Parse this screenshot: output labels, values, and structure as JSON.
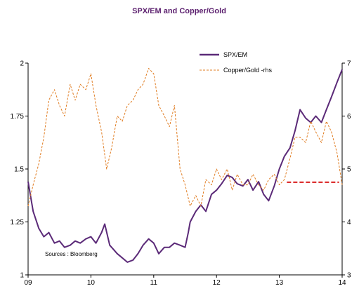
{
  "chart_data": {
    "type": "line",
    "title": "SPX/EM and Copper/Gold",
    "source_note": "Sources : Bloomberg",
    "x_axis": {
      "min": 2009.0,
      "max": 2014.0,
      "tick_values": [
        2009,
        2010,
        2011,
        2012,
        2013,
        2014
      ],
      "tick_labels": [
        "09",
        "10",
        "11",
        "12",
        "13",
        "14"
      ]
    },
    "y_left": {
      "min": 1.0,
      "max": 2.0,
      "tick_values": [
        1,
        1.25,
        1.5,
        1.75,
        2
      ],
      "tick_labels": [
        "1",
        "1.25",
        "1.5",
        "1.75",
        "2"
      ]
    },
    "y_right": {
      "min": 3.0,
      "max": 7.0,
      "tick_values": [
        3,
        4,
        5,
        6,
        7
      ],
      "tick_labels": [
        "3",
        "4",
        "5",
        "6",
        "7"
      ]
    },
    "legend_position": "top-right",
    "colors": {
      "title": "#5b1f6e",
      "spx_em": "#5b2a78",
      "copper_gold": "#e07b1f",
      "threshold": "#d91c1c"
    },
    "series": [
      {
        "name": "SPX/EM",
        "axis": "left",
        "style": "solid",
        "x": [
          2009.0,
          2009.08,
          2009.17,
          2009.25,
          2009.33,
          2009.42,
          2009.5,
          2009.58,
          2009.67,
          2009.75,
          2009.83,
          2009.92,
          2010.0,
          2010.08,
          2010.17,
          2010.22,
          2010.3,
          2010.42,
          2010.5,
          2010.58,
          2010.67,
          2010.75,
          2010.83,
          2010.92,
          2011.0,
          2011.08,
          2011.17,
          2011.25,
          2011.33,
          2011.42,
          2011.5,
          2011.55,
          2011.58,
          2011.67,
          2011.75,
          2011.83,
          2011.92,
          2012.0,
          2012.08,
          2012.17,
          2012.25,
          2012.33,
          2012.42,
          2012.5,
          2012.58,
          2012.67,
          2012.75,
          2012.83,
          2012.92,
          2013.0,
          2013.08,
          2013.17,
          2013.25,
          2013.33,
          2013.42,
          2013.5,
          2013.58,
          2013.67,
          2013.75,
          2013.83,
          2013.92,
          2014.0
        ],
        "values": [
          1.44,
          1.3,
          1.22,
          1.18,
          1.2,
          1.15,
          1.16,
          1.13,
          1.14,
          1.16,
          1.15,
          1.17,
          1.18,
          1.15,
          1.2,
          1.24,
          1.14,
          1.1,
          1.08,
          1.06,
          1.07,
          1.1,
          1.14,
          1.17,
          1.15,
          1.1,
          1.13,
          1.13,
          1.15,
          1.14,
          1.13,
          1.2,
          1.25,
          1.3,
          1.33,
          1.3,
          1.38,
          1.4,
          1.43,
          1.47,
          1.46,
          1.43,
          1.42,
          1.45,
          1.4,
          1.44,
          1.38,
          1.35,
          1.42,
          1.5,
          1.56,
          1.6,
          1.68,
          1.78,
          1.74,
          1.72,
          1.75,
          1.72,
          1.78,
          1.84,
          1.91,
          1.97
        ]
      },
      {
        "name": "Copper/Gold -rhs",
        "axis": "right",
        "style": "dashed",
        "x": [
          2009.0,
          2009.08,
          2009.17,
          2009.25,
          2009.33,
          2009.42,
          2009.5,
          2009.58,
          2009.67,
          2009.75,
          2009.83,
          2009.92,
          2010.0,
          2010.08,
          2010.17,
          2010.25,
          2010.33,
          2010.42,
          2010.5,
          2010.58,
          2010.67,
          2010.75,
          2010.83,
          2010.92,
          2011.0,
          2011.08,
          2011.17,
          2011.25,
          2011.33,
          2011.42,
          2011.5,
          2011.58,
          2011.67,
          2011.75,
          2011.83,
          2011.92,
          2012.0,
          2012.08,
          2012.17,
          2012.25,
          2012.33,
          2012.42,
          2012.5,
          2012.58,
          2012.67,
          2012.75,
          2012.83,
          2012.92,
          2013.0,
          2013.08,
          2013.17,
          2013.25,
          2013.33,
          2013.42,
          2013.5,
          2013.58,
          2013.67,
          2013.75,
          2013.83,
          2013.92,
          2014.0
        ],
        "values": [
          4.3,
          4.7,
          5.1,
          5.6,
          6.3,
          6.5,
          6.2,
          6.0,
          6.6,
          6.3,
          6.6,
          6.5,
          6.8,
          6.2,
          5.7,
          5.0,
          5.4,
          6.0,
          5.9,
          6.2,
          6.3,
          6.5,
          6.6,
          6.9,
          6.8,
          6.2,
          6.0,
          5.8,
          6.2,
          5.0,
          4.7,
          4.3,
          4.5,
          4.3,
          4.8,
          4.7,
          5.0,
          4.8,
          5.0,
          4.6,
          4.9,
          4.7,
          4.7,
          4.9,
          4.7,
          4.6,
          4.8,
          4.9,
          4.7,
          4.8,
          5.2,
          5.6,
          5.6,
          5.5,
          5.9,
          5.7,
          5.5,
          5.9,
          5.7,
          5.3,
          4.7
        ]
      }
    ],
    "threshold_line": {
      "axis": "right",
      "value": 4.75,
      "x_start": 2013.12,
      "x_end": 2013.95
    }
  }
}
